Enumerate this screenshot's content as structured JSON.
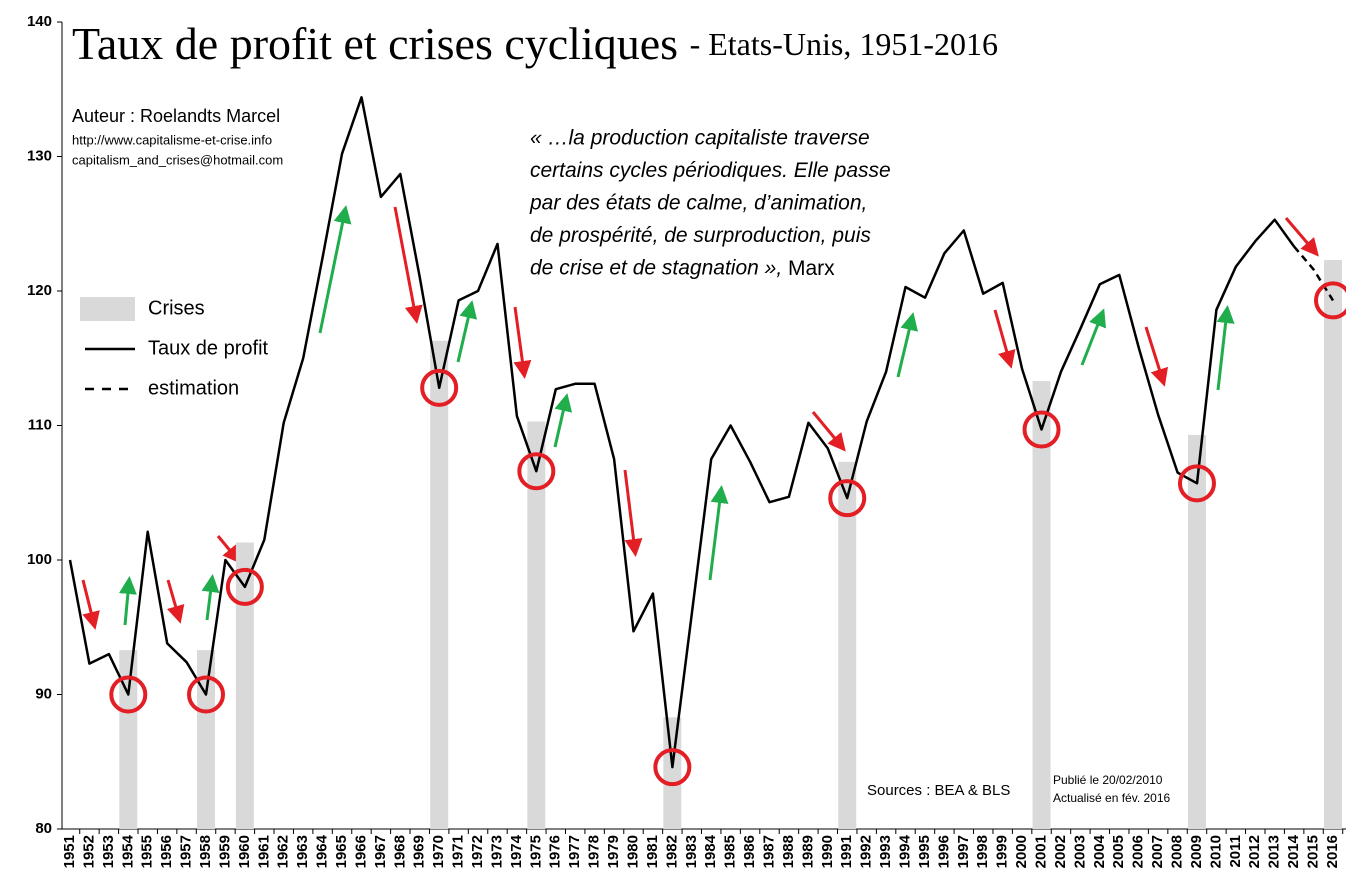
{
  "chart_data": {
    "type": "line",
    "title": "Taux de profit et crises cycliques",
    "subtitle": "- Etats-Unis, 1951-2016",
    "author": "Auteur : Roelandts Marcel",
    "website": "http://www.capitalisme-et-crise.info",
    "email": "capitalism_and_crises@hotmail.com",
    "quote": [
      "« …la production capitaliste traverse",
      "certains cycles périodiques. Elle passe",
      "par des états de calme, d’animation,",
      "de prospérité, de surproduction, puis",
      "de crise et de stagnation »,"
    ],
    "quote_author": "Marx",
    "sources": "Sources : BEA & BLS",
    "published": "Publié le 20/02/2010",
    "updated": "Actualisé en fév. 2016",
    "legend": "left",
    "categories": [
      "1951",
      "1952",
      "1953",
      "1954",
      "1955",
      "1956",
      "1957",
      "1958",
      "1959",
      "1960",
      "1961",
      "1962",
      "1963",
      "1964",
      "1965",
      "1966",
      "1967",
      "1968",
      "1969",
      "1970",
      "1971",
      "1972",
      "1973",
      "1974",
      "1975",
      "1976",
      "1977",
      "1978",
      "1979",
      "1980",
      "1981",
      "1982",
      "1983",
      "1984",
      "1985",
      "1986",
      "1987",
      "1988",
      "1989",
      "1990",
      "1991",
      "1992",
      "1993",
      "1994",
      "1995",
      "1996",
      "1997",
      "1998",
      "1999",
      "2000",
      "2001",
      "2002",
      "2003",
      "2004",
      "2005",
      "2006",
      "2007",
      "2008",
      "2009",
      "2010",
      "2011",
      "2012",
      "2013",
      "2014",
      "2015",
      "2016"
    ],
    "series": [
      {
        "name": "Crises",
        "type": "bar",
        "color": "#d9d9d9",
        "values": [
          null,
          null,
          null,
          93.3,
          null,
          null,
          null,
          93.3,
          null,
          101.3,
          null,
          null,
          null,
          null,
          null,
          null,
          null,
          null,
          null,
          116.3,
          null,
          null,
          null,
          null,
          110.3,
          null,
          null,
          null,
          null,
          null,
          null,
          88.3,
          null,
          null,
          null,
          null,
          null,
          null,
          null,
          null,
          107.3,
          null,
          null,
          null,
          null,
          null,
          null,
          null,
          null,
          null,
          113.3,
          null,
          null,
          null,
          null,
          null,
          null,
          null,
          109.3,
          null,
          null,
          null,
          null,
          null,
          null,
          122.3
        ]
      },
      {
        "name": "Taux de profit",
        "type": "line",
        "color": "#000000",
        "dashed": false,
        "values": [
          100,
          92.3,
          93.0,
          90.0,
          102.1,
          93.8,
          92.4,
          90.0,
          100.0,
          98.0,
          101.5,
          110.2,
          115.0,
          122.5,
          130.2,
          134.4,
          127.0,
          128.7,
          121.0,
          112.8,
          119.3,
          120.0,
          123.5,
          110.7,
          106.6,
          112.7,
          113.1,
          113.1,
          107.5,
          94.7,
          97.5,
          84.6,
          96.0,
          107.5,
          110.0,
          107.3,
          104.3,
          104.7,
          110.2,
          108.3,
          104.6,
          110.3,
          114.0,
          120.3,
          119.5,
          122.8,
          124.5,
          119.8,
          120.6,
          114.2,
          109.7,
          114.0,
          117.2,
          120.5,
          121.2,
          115.8,
          110.8,
          106.5,
          105.7,
          118.6,
          121.8,
          123.7,
          125.3,
          123.3,
          null,
          null
        ]
      },
      {
        "name": "estimation",
        "type": "line",
        "color": "#000000",
        "dashed": true,
        "values": [
          null,
          null,
          null,
          null,
          null,
          null,
          null,
          null,
          null,
          null,
          null,
          null,
          null,
          null,
          null,
          null,
          null,
          null,
          null,
          null,
          null,
          null,
          null,
          null,
          null,
          null,
          null,
          null,
          null,
          null,
          null,
          null,
          null,
          null,
          null,
          null,
          null,
          null,
          null,
          null,
          null,
          null,
          null,
          null,
          null,
          null,
          null,
          null,
          null,
          null,
          null,
          null,
          null,
          null,
          null,
          null,
          null,
          null,
          null,
          null,
          null,
          null,
          null,
          123.3,
          121.6,
          119.3
        ]
      }
    ],
    "ylim": [
      80,
      140
    ],
    "yticks": [
      80,
      90,
      100,
      110,
      120,
      130,
      140
    ],
    "grid": false
  }
}
